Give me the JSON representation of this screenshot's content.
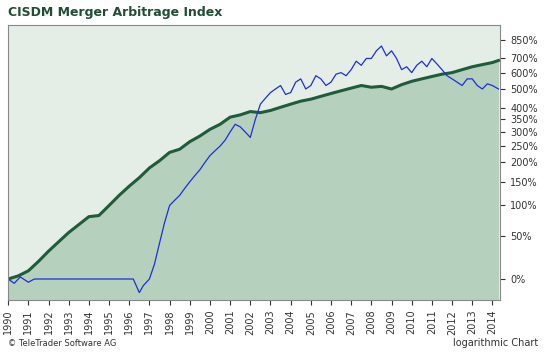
{
  "chart_data": {
    "type": "line",
    "title": "CISDM Merger Arbitrage Index",
    "annotations": [
      "© TeleTrader Software AG",
      "logarithmic Chart"
    ],
    "log": "y",
    "grid": false,
    "xlim": [
      1990,
      2014.4
    ],
    "xticks": [
      1990,
      1991,
      1992,
      1993,
      1994,
      1995,
      1996,
      1997,
      1998,
      1999,
      2000,
      2001,
      2002,
      2003,
      2004,
      2005,
      2006,
      2007,
      2008,
      2009,
      2010,
      2011,
      2012,
      2013,
      2014
    ],
    "ylim": [
      -18,
      1000
    ],
    "yticks": [
      {
        "value": 0,
        "label": "0%"
      },
      {
        "value": 50,
        "label": "50%"
      },
      {
        "value": 100,
        "label": "100%"
      },
      {
        "value": 150,
        "label": "150%"
      },
      {
        "value": 200,
        "label": "200%"
      },
      {
        "value": 250,
        "label": "250%"
      },
      {
        "value": 300,
        "label": "300%"
      },
      {
        "value": 350,
        "label": "350%"
      },
      {
        "value": 400,
        "label": "400%"
      },
      {
        "value": 500,
        "label": "500%"
      },
      {
        "value": 600,
        "label": "600%"
      },
      {
        "value": 700,
        "label": "700%"
      },
      {
        "value": 850,
        "label": "850%"
      }
    ],
    "series": [
      {
        "color": "#1f5c3a",
        "x": [
          1990.0,
          1990.5,
          1991.0,
          1991.5,
          1992.0,
          1992.5,
          1993.0,
          1993.5,
          1994.0,
          1994.5,
          1995.0,
          1995.5,
          1996.0,
          1996.5,
          1997.0,
          1997.5,
          1998.0,
          1998.5,
          1999.0,
          1999.5,
          2000.0,
          2000.5,
          2001.0,
          2001.5,
          2002.0,
          2002.5,
          2003.0,
          2003.5,
          2004.0,
          2004.5,
          2005.0,
          2005.5,
          2006.0,
          2006.5,
          2007.0,
          2007.5,
          2008.0,
          2008.5,
          2009.0,
          2009.5,
          2010.0,
          2010.5,
          2011.0,
          2011.5,
          2012.0,
          2012.5,
          2013.0,
          2013.5,
          2014.0,
          2014.3
        ],
        "values": [
          0,
          3,
          8,
          18,
          30,
          42,
          55,
          67,
          80,
          82,
          100,
          120,
          140,
          160,
          185,
          205,
          230,
          240,
          265,
          285,
          310,
          330,
          360,
          370,
          385,
          380,
          390,
          405,
          420,
          435,
          445,
          460,
          475,
          490,
          505,
          520,
          510,
          515,
          500,
          525,
          545,
          560,
          575,
          590,
          600,
          620,
          640,
          655,
          670,
          685
        ]
      },
      {
        "color": "#1f2fd6",
        "x": [
          1990.0,
          1990.3,
          1990.6,
          1991.0,
          1991.3,
          1992.0,
          1993.0,
          1994.0,
          1995.0,
          1996.0,
          1996.2,
          1996.5,
          1996.7,
          1997.0,
          1997.25,
          1997.5,
          1997.75,
          1998.0,
          1998.25,
          1998.5,
          1998.75,
          1999.0,
          1999.25,
          1999.5,
          1999.75,
          2000.0,
          2000.25,
          2000.5,
          2000.75,
          2001.0,
          2001.25,
          2001.5,
          2001.75,
          2002.0,
          2002.25,
          2002.5,
          2002.75,
          2003.0,
          2003.25,
          2003.5,
          2003.75,
          2004.0,
          2004.25,
          2004.5,
          2004.75,
          2005.0,
          2005.25,
          2005.5,
          2005.75,
          2006.0,
          2006.25,
          2006.5,
          2006.75,
          2007.0,
          2007.25,
          2007.5,
          2007.75,
          2008.0,
          2008.25,
          2008.5,
          2008.75,
          2009.0,
          2009.25,
          2009.5,
          2009.75,
          2010.0,
          2010.25,
          2010.5,
          2010.75,
          2011.0,
          2011.25,
          2011.5,
          2011.75,
          2012.0,
          2012.25,
          2012.5,
          2012.75,
          2013.0,
          2013.25,
          2013.5,
          2013.75,
          2014.0,
          2014.3
        ],
        "values": [
          0,
          -4,
          2,
          -3,
          0,
          0,
          0,
          0,
          0,
          0,
          0,
          -12,
          -6,
          0,
          15,
          40,
          70,
          100,
          110,
          120,
          135,
          150,
          165,
          180,
          200,
          220,
          235,
          250,
          270,
          300,
          330,
          320,
          300,
          280,
          350,
          420,
          450,
          480,
          500,
          520,
          470,
          480,
          540,
          560,
          500,
          520,
          580,
          560,
          520,
          540,
          590,
          600,
          580,
          620,
          680,
          650,
          700,
          700,
          760,
          800,
          720,
          760,
          700,
          620,
          640,
          600,
          650,
          680,
          640,
          700,
          660,
          620,
          580,
          560,
          540,
          520,
          560,
          560,
          520,
          500,
          530,
          520,
          500
        ]
      }
    ]
  }
}
